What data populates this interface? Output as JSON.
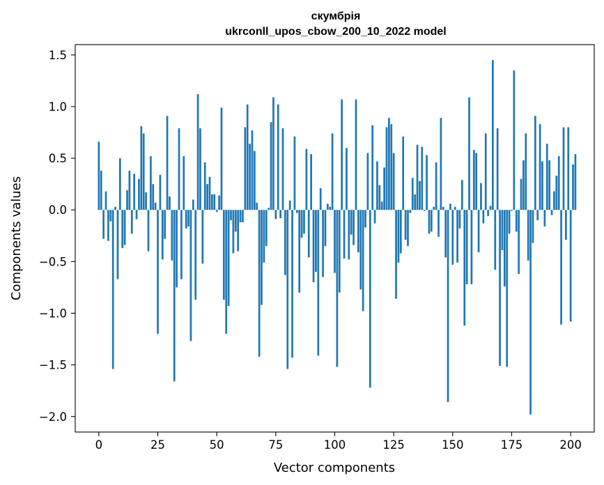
{
  "chart_data": {
    "type": "bar",
    "title_line1": "скумбрія",
    "title_line2": "ukrconll_upos_cbow_200_10_2022 model",
    "xlabel": "Vector components",
    "ylabel": "Components values",
    "xlim": [
      -10,
      210
    ],
    "ylim": [
      -2.15,
      1.6
    ],
    "xticks": [
      0,
      25,
      50,
      75,
      100,
      125,
      150,
      175,
      200
    ],
    "xtick_labels": [
      "0",
      "25",
      "50",
      "75",
      "100",
      "125",
      "150",
      "175",
      "200"
    ],
    "yticks": [
      1.5,
      1.0,
      0.5,
      0.0,
      -0.5,
      -1.0,
      -1.5,
      -2.0
    ],
    "ytick_labels": [
      "1.5",
      "1.0",
      "0.5",
      "0.0",
      "−0.5",
      "−1.0",
      "−1.5",
      "−2.0"
    ],
    "bar_color": "#1f77b4",
    "values": [
      0.66,
      0.38,
      -0.28,
      0.18,
      -0.3,
      -0.11,
      -1.54,
      0.03,
      -0.67,
      0.5,
      -0.37,
      -0.34,
      0.19,
      0.38,
      -0.23,
      0.35,
      -0.09,
      0.3,
      0.81,
      0.74,
      0.17,
      -0.4,
      0.52,
      0.25,
      0.07,
      -1.2,
      0.34,
      -0.48,
      -0.28,
      0.91,
      0.13,
      -0.49,
      -1.66,
      -0.75,
      0.79,
      -0.67,
      0.52,
      -0.18,
      -0.16,
      -1.27,
      0.1,
      -0.87,
      1.12,
      0.79,
      -0.52,
      0.46,
      0.25,
      0.32,
      0.15,
      0.15,
      -0.02,
      0.14,
      0.99,
      -0.87,
      -1.2,
      -0.93,
      -0.1,
      -0.42,
      -0.21,
      -0.4,
      -0.12,
      -0.12,
      0.8,
      1.02,
      0.64,
      0.77,
      0.57,
      0.07,
      -1.42,
      -0.92,
      -0.51,
      -0.35,
      0.02,
      0.85,
      1.09,
      -0.09,
      1.02,
      -0.08,
      0.79,
      -0.63,
      -1.54,
      0.09,
      -1.43,
      0.71,
      -0.03,
      -0.8,
      -0.27,
      -0.23,
      0.59,
      -0.46,
      0.54,
      -0.7,
      -0.6,
      -1.41,
      0.21,
      -0.65,
      -0.35,
      0.06,
      0.03,
      0.74,
      -0.61,
      -1.52,
      -0.8,
      1.07,
      -0.47,
      0.6,
      -0.48,
      -0.24,
      -0.34,
      1.07,
      -0.41,
      -0.77,
      -0.98,
      -0.17,
      0.55,
      -1.72,
      0.82,
      -0.13,
      0.47,
      0.24,
      0.08,
      0.41,
      0.8,
      0.89,
      0.83,
      0.55,
      -0.86,
      -0.51,
      -0.42,
      0.71,
      -0.29,
      -0.35,
      -0.03,
      0.31,
      0.15,
      0.63,
      0.28,
      0.61,
      -0.01,
      0.53,
      -0.23,
      -0.21,
      0.03,
      0.46,
      -0.26,
      0.89,
      0.03,
      -0.46,
      -1.86,
      0.06,
      -0.53,
      0.03,
      -0.51,
      -0.18,
      0.29,
      -1.12,
      -0.72,
      1.09,
      -0.72,
      0.58,
      0.55,
      -0.41,
      0.26,
      -0.13,
      0.74,
      -0.06,
      0.04,
      1.45,
      -0.58,
      0.79,
      -1.51,
      -0.39,
      -0.74,
      -1.52,
      -0.23,
      -0.01,
      1.35,
      -0.21,
      -0.62,
      0.3,
      0.48,
      0.74,
      -0.49,
      -1.98,
      -0.32,
      0.91,
      -0.1,
      0.83,
      0.47,
      -0.16,
      0.64,
      0.48,
      -0.05,
      0.18,
      0.33,
      0.52,
      -1.11,
      0.8,
      -0.29,
      0.8,
      -1.08,
      0.44,
      0.54
    ]
  }
}
